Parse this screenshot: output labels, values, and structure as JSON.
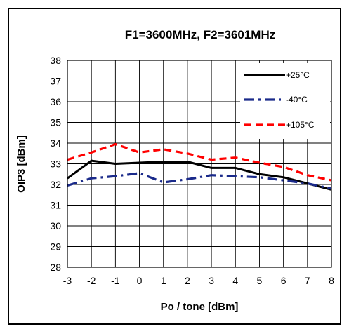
{
  "chart_data": {
    "type": "line",
    "title": "F1=3600MHz, F2=3601MHz",
    "xlabel": "Po / tone [dBm]",
    "ylabel": "OIP3 [dBm]",
    "xlim": [
      -3,
      8
    ],
    "ylim": [
      28,
      38
    ],
    "xticks": [
      -3,
      -2,
      -1,
      0,
      1,
      2,
      3,
      4,
      5,
      6,
      7,
      8
    ],
    "yticks": [
      28,
      29,
      30,
      31,
      32,
      33,
      34,
      35,
      36,
      37,
      38
    ],
    "grid": true,
    "legend_position": "top-right",
    "series": [
      {
        "name": "+25°C",
        "color": "#000000",
        "style": "solid",
        "x": [
          -3,
          -2,
          -1,
          0,
          1,
          2,
          3,
          4,
          5,
          6,
          7,
          8
        ],
        "values": [
          32.3,
          33.15,
          33.0,
          33.05,
          33.1,
          33.1,
          32.8,
          32.8,
          32.5,
          32.35,
          32.05,
          31.75
        ]
      },
      {
        "name": "-40°C",
        "color": "#1a2a8a",
        "style": "dashdot",
        "x": [
          -3,
          -2,
          -1,
          0,
          1,
          2,
          3,
          4,
          5,
          6,
          7,
          8
        ],
        "values": [
          31.95,
          32.3,
          32.4,
          32.55,
          32.1,
          32.25,
          32.45,
          32.4,
          32.35,
          32.2,
          32.05,
          31.8
        ]
      },
      {
        "name": "+105°C",
        "color": "#ff0000",
        "style": "dashed",
        "x": [
          -3,
          -2,
          -1,
          0,
          1,
          2,
          3,
          4,
          5,
          6,
          7,
          8
        ],
        "values": [
          33.2,
          33.55,
          33.95,
          33.55,
          33.7,
          33.5,
          33.2,
          33.3,
          33.05,
          32.85,
          32.45,
          32.2
        ]
      }
    ]
  }
}
